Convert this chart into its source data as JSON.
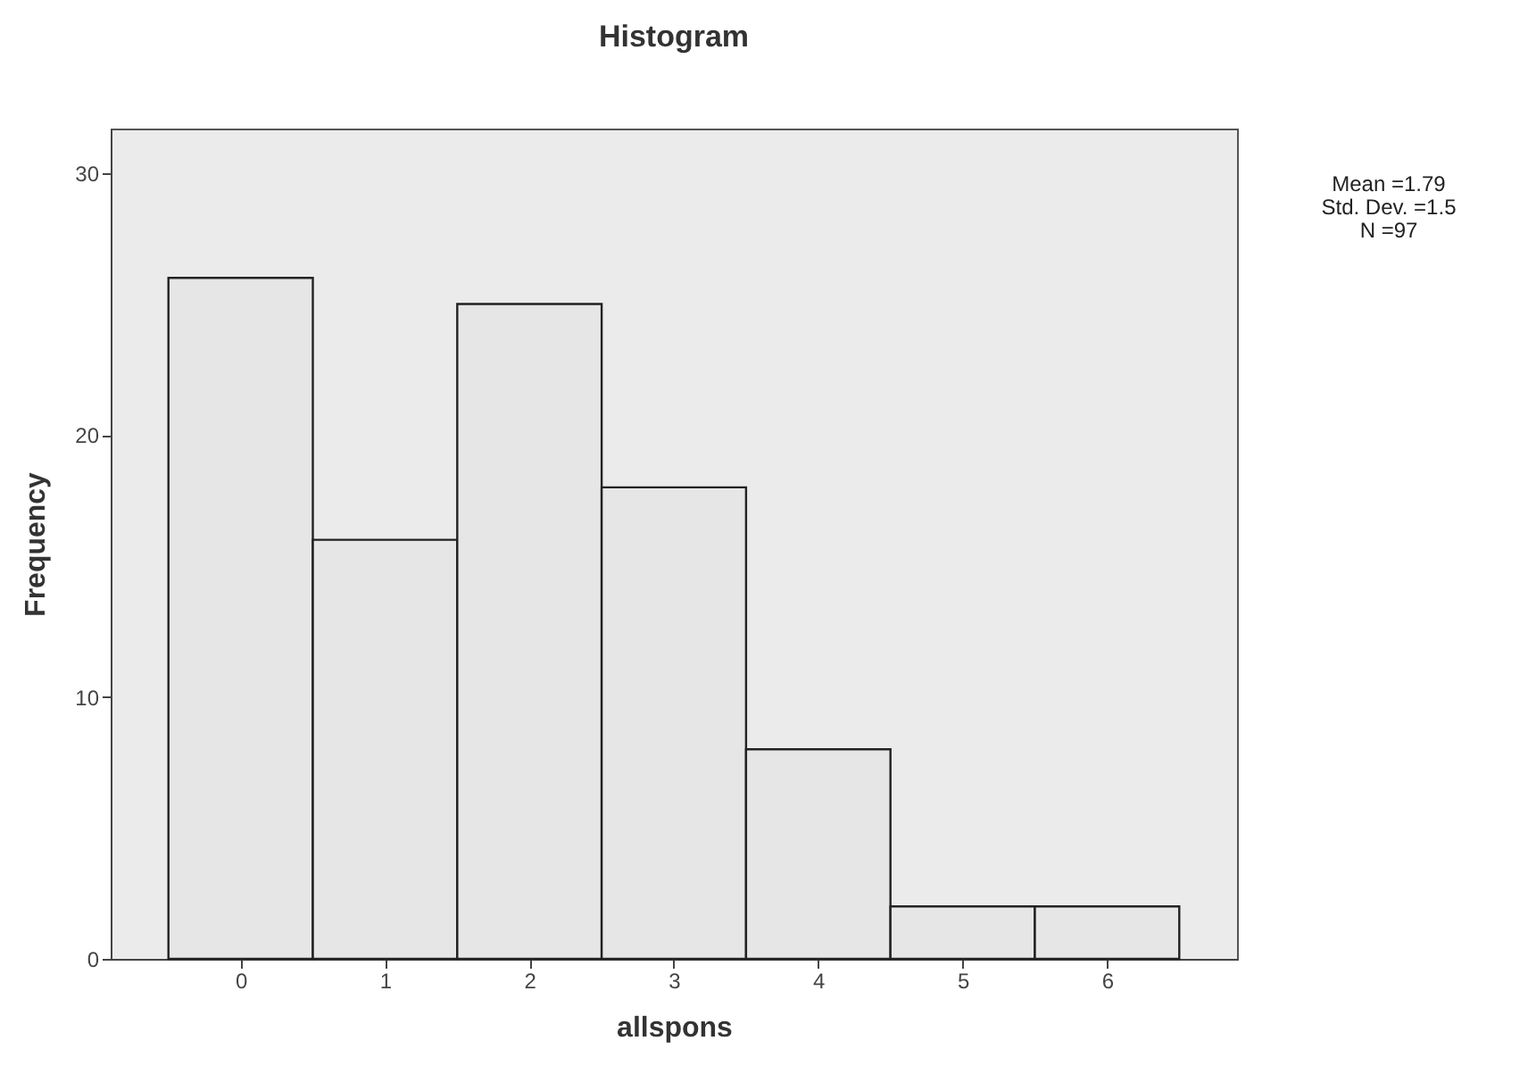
{
  "chart_data": {
    "type": "histogram",
    "title": "Histogram",
    "xlabel": "allspons",
    "ylabel": "Frequency",
    "bins": [
      -0.5,
      0.5,
      1.5,
      2.5,
      3.5,
      4.5,
      5.5,
      6.5
    ],
    "values": [
      26,
      16,
      25,
      18,
      8,
      2,
      2
    ],
    "color": "#e6e6e6",
    "xlim": [
      -0.9,
      6.9
    ],
    "xticks": [
      0,
      1,
      2,
      3,
      4,
      5,
      6
    ],
    "ylim": [
      0,
      31.7
    ],
    "yticks": [
      0,
      10,
      20,
      30
    ],
    "grid": false,
    "annotations": [
      "Mean =1.79",
      "Std. Dev. =1.5",
      "N =97"
    ]
  }
}
